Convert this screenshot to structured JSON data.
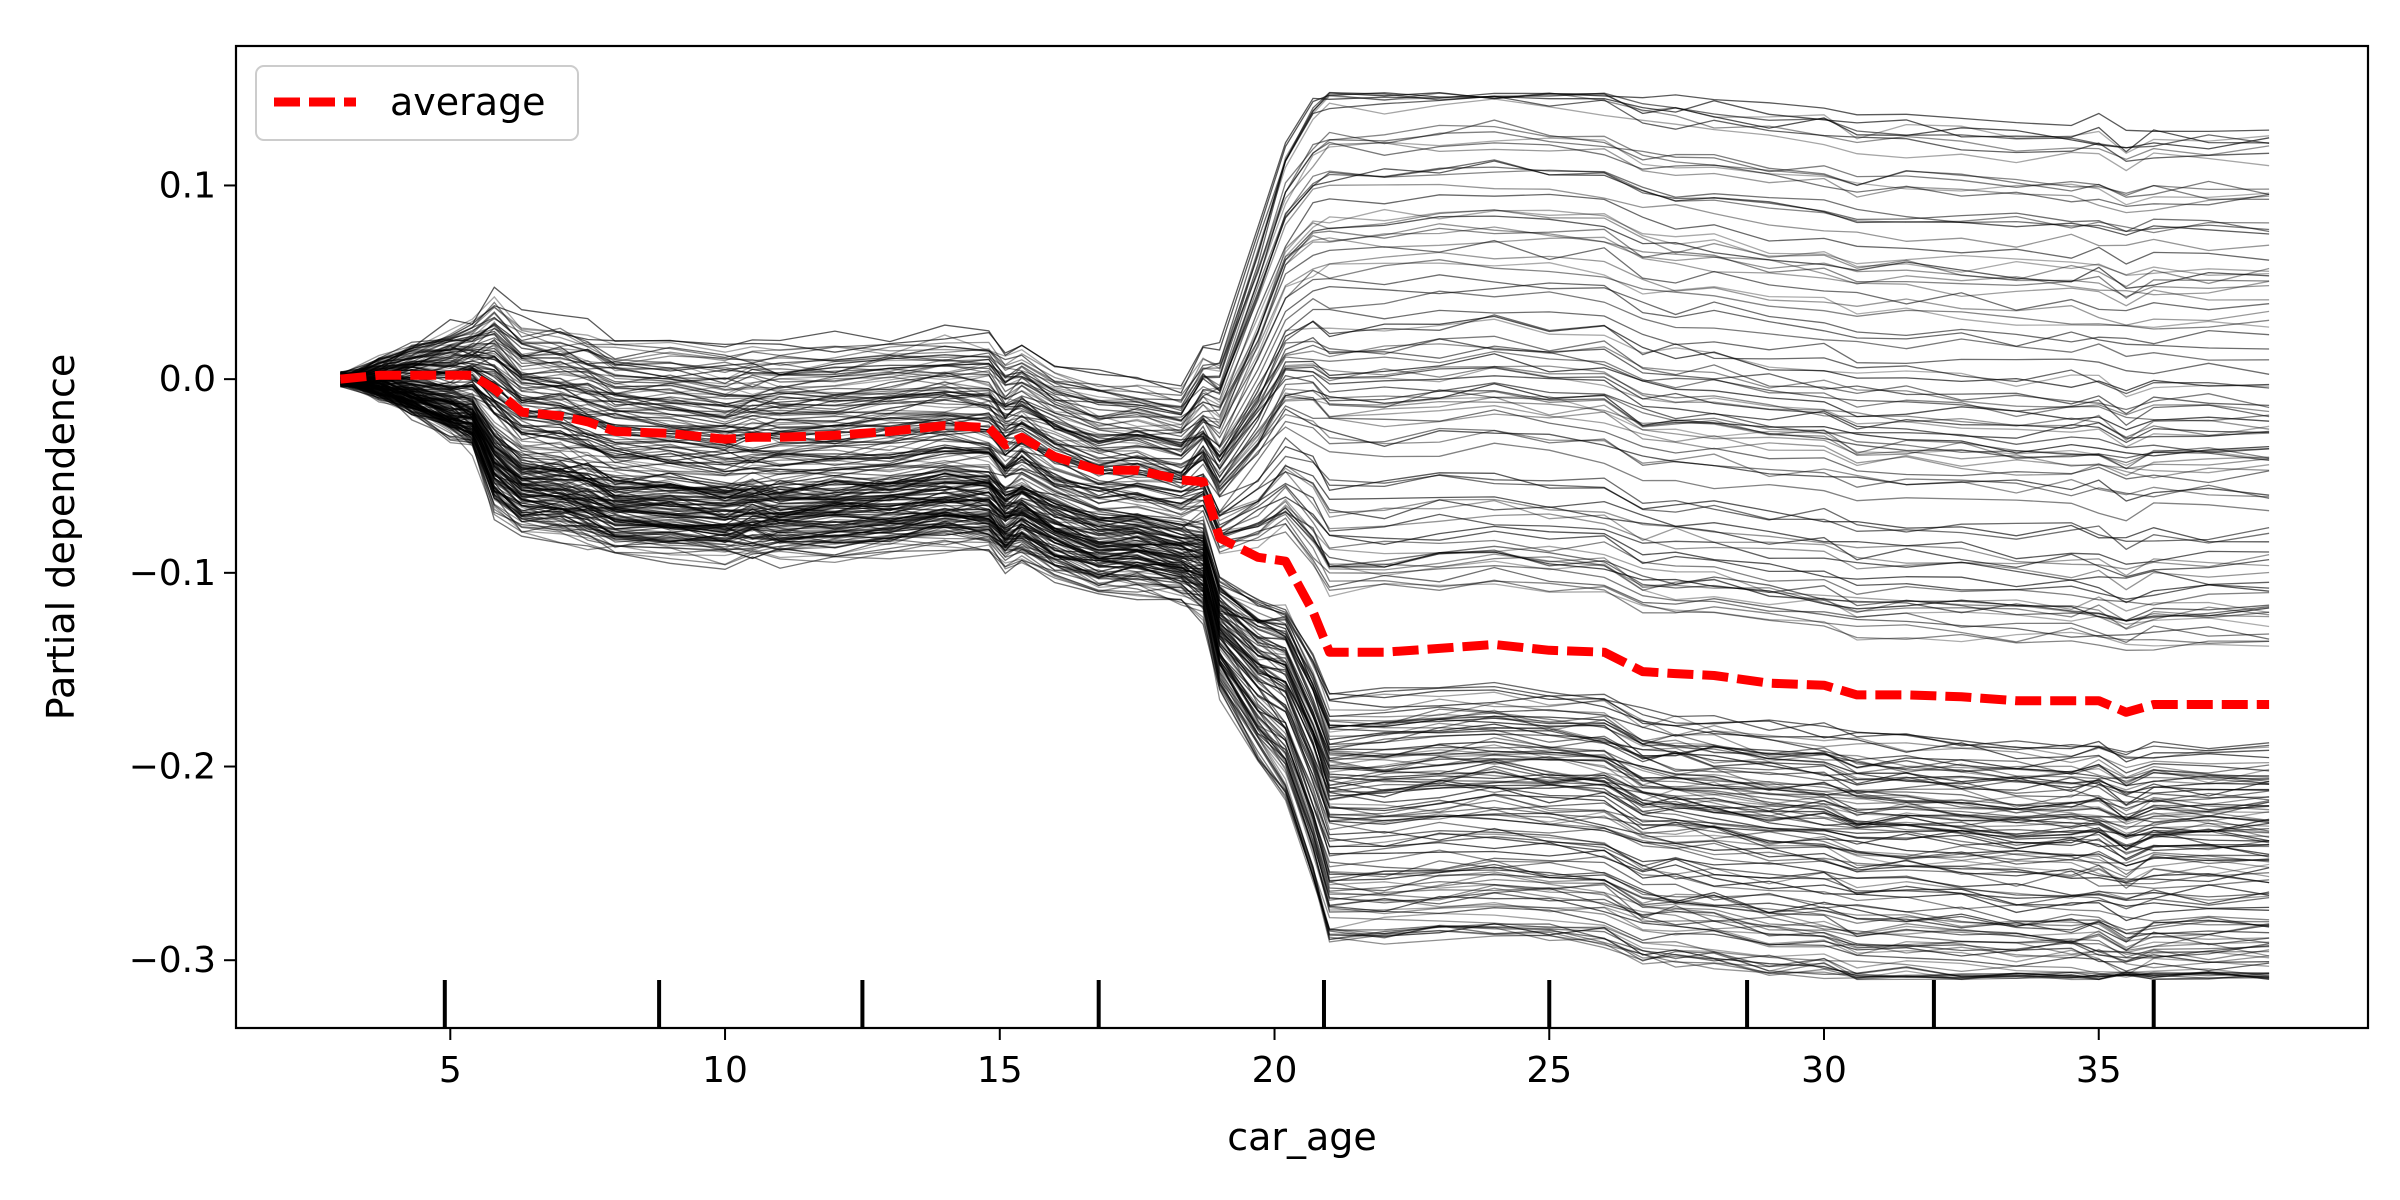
{
  "chart_data": {
    "type": "line",
    "title": "",
    "xlabel": "car_age",
    "ylabel": "Partial dependence",
    "xlim": [
      1.1,
      39.9
    ],
    "ylim": [
      -0.335,
      0.172
    ],
    "x_ticks": [
      5,
      10,
      15,
      20,
      25,
      30,
      35
    ],
    "y_ticks": [
      0.1,
      0.0,
      -0.1,
      -0.2,
      -0.3
    ],
    "y_tick_labels": [
      "0.1",
      "0.0",
      "−0.1",
      "−0.2",
      "−0.3"
    ],
    "grid": false,
    "legend": {
      "position": "top-left",
      "entries": [
        "average"
      ]
    },
    "series": [
      {
        "name": "average",
        "style": "dashed",
        "color": "#ff0000",
        "x": [
          3.0,
          3.7,
          4.3,
          5.0,
          5.4,
          5.8,
          6.3,
          7.0,
          7.5,
          8.0,
          9.0,
          10.0,
          10.5,
          11.0,
          12.0,
          13.0,
          14.0,
          14.8,
          15.1,
          15.4,
          16.0,
          16.8,
          17.5,
          18.3,
          18.7,
          19.0,
          19.7,
          20.2,
          20.7,
          21.0,
          22.0,
          23.0,
          24.0,
          25.0,
          26.0,
          26.7,
          27.3,
          28.0,
          29.0,
          30.0,
          30.6,
          31.5,
          32.5,
          33.5,
          34.5,
          35.0,
          35.5,
          36.0,
          37.0,
          38.1
        ],
        "values": [
          0.0,
          0.002,
          0.002,
          0.002,
          0.002,
          -0.005,
          -0.017,
          -0.019,
          -0.022,
          -0.027,
          -0.028,
          -0.031,
          -0.03,
          -0.03,
          -0.029,
          -0.027,
          -0.024,
          -0.025,
          -0.034,
          -0.03,
          -0.04,
          -0.047,
          -0.047,
          -0.052,
          -0.053,
          -0.082,
          -0.092,
          -0.094,
          -0.12,
          -0.141,
          -0.141,
          -0.139,
          -0.137,
          -0.14,
          -0.141,
          -0.151,
          -0.152,
          -0.153,
          -0.157,
          -0.158,
          -0.163,
          -0.163,
          -0.164,
          -0.166,
          -0.166,
          -0.166,
          -0.172,
          -0.168,
          -0.168,
          -0.168
        ]
      }
    ],
    "ice_lines": {
      "count": 200,
      "color": "#000000",
      "x_start": 3.0,
      "x_end": 38.1,
      "note_range_at_end": [
        -0.31,
        0.135
      ]
    },
    "rug_x": [
      4.9,
      8.8,
      12.5,
      16.8,
      20.9,
      25.0,
      28.6,
      32.0,
      36.0
    ]
  }
}
